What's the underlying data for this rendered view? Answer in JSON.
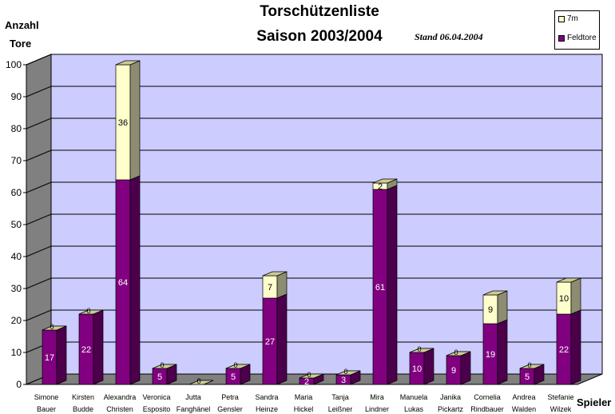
{
  "chart_data": {
    "type": "bar",
    "stacked": true,
    "title": "Torschützenliste",
    "subtitle": "Saison 2003/2004",
    "annotation": "Stand 06.04.2004",
    "ylabel_line1": "Anzahl",
    "ylabel_line2": "Tore",
    "xlabel": "Spieler",
    "ylim": [
      0,
      100
    ],
    "yticks": [
      "0",
      "10",
      "20",
      "30",
      "40",
      "50",
      "60",
      "70",
      "80",
      "90",
      "100"
    ],
    "grid": true,
    "legend_position": "top-right",
    "categories": [
      [
        "Simone",
        "Bauer"
      ],
      [
        "Kirsten",
        "Budde"
      ],
      [
        "Alexandra",
        "Christen"
      ],
      [
        "Veronica",
        "Esposito"
      ],
      [
        "Jutta",
        "Fanghänel"
      ],
      [
        "Petra",
        "Gensler"
      ],
      [
        "Sandra",
        "Heinze"
      ],
      [
        "Maria",
        "Hickel"
      ],
      [
        "Tanja",
        "Leißner"
      ],
      [
        "Mira",
        "Lindner"
      ],
      [
        "Manuela",
        "Lukas"
      ],
      [
        "Janika",
        "Pickartz"
      ],
      [
        "Cornelia",
        "Rindbauer"
      ],
      [
        "Andrea",
        "Walden"
      ],
      [
        "Stefanie",
        "Wilzek"
      ]
    ],
    "series": [
      {
        "name": "Feldtore",
        "color": "#800080",
        "values": [
          17,
          22,
          64,
          5,
          0,
          5,
          27,
          2,
          3,
          61,
          10,
          9,
          19,
          5,
          22
        ],
        "labels": [
          "17",
          "22",
          "64",
          "5",
          "0",
          "5",
          "27",
          "2",
          "3",
          "61",
          "10",
          "9",
          "19",
          "5",
          "22"
        ]
      },
      {
        "name": "7m",
        "color": "#ffffcc",
        "values": [
          0,
          0,
          36,
          0,
          0,
          0,
          7,
          0,
          0,
          2,
          0,
          0,
          9,
          0,
          10
        ],
        "labels": [
          "0",
          "0",
          "36",
          "0",
          "0",
          "0",
          "7",
          "0",
          "0",
          "2",
          "0",
          "0",
          "9",
          "0",
          "10"
        ]
      }
    ],
    "colors": {
      "wall": "#ccccff",
      "floor": "#808080",
      "feld_front": "#800080",
      "feld_side": "#4c004c",
      "feld_top": "#993399",
      "m7_front": "#ffffcc",
      "m7_side": "#8c8c70",
      "m7_top": "#cccc99"
    }
  }
}
